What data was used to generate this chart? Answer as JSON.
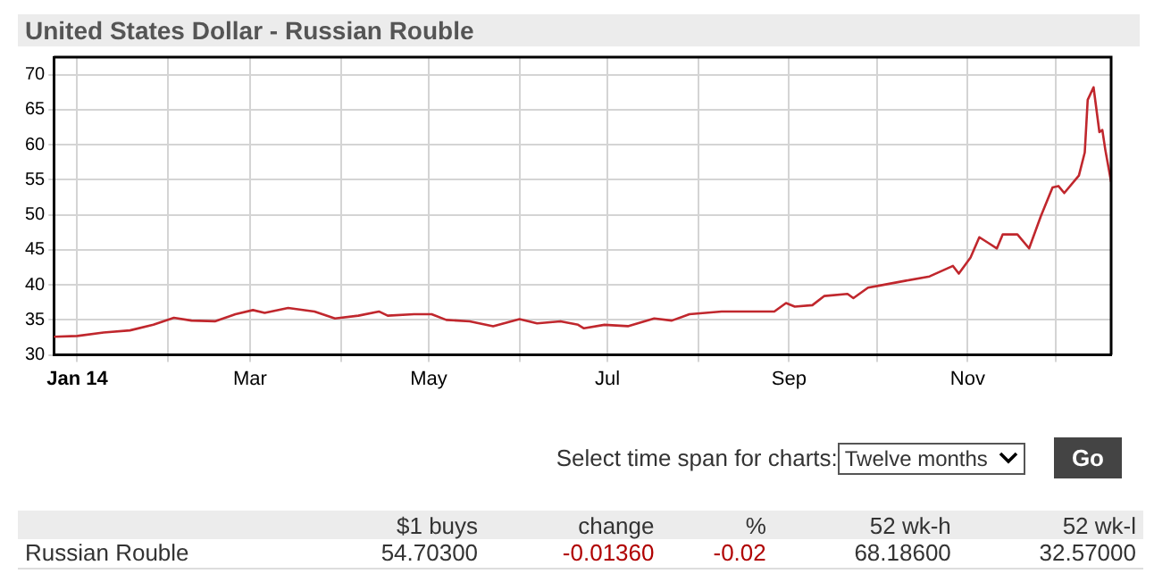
{
  "chart_data": {
    "type": "line",
    "title": "United States Dollar - Russian Rouble",
    "x": [
      "2013-12-24",
      "2014-01-01",
      "2014-01-10",
      "2014-01-19",
      "2014-01-27",
      "2014-02-03",
      "2014-02-09",
      "2014-02-17",
      "2014-02-24",
      "2014-03-02",
      "2014-03-06",
      "2014-03-14",
      "2014-03-23",
      "2014-03-30",
      "2014-04-07",
      "2014-04-14",
      "2014-04-17",
      "2014-04-26",
      "2014-05-02",
      "2014-05-07",
      "2014-05-15",
      "2014-05-23",
      "2014-06-01",
      "2014-06-07",
      "2014-06-15",
      "2014-06-21",
      "2014-06-23",
      "2014-06-30",
      "2014-07-08",
      "2014-07-17",
      "2014-07-23",
      "2014-07-29",
      "2014-08-09",
      "2014-08-19",
      "2014-08-27",
      "2014-08-31",
      "2014-09-03",
      "2014-09-09",
      "2014-09-13",
      "2014-09-21",
      "2014-09-23",
      "2014-09-28",
      "2014-10-02",
      "2014-10-11",
      "2014-10-19",
      "2014-10-27",
      "2014-10-29",
      "2014-11-02",
      "2014-11-05",
      "2014-11-08",
      "2014-11-11",
      "2014-11-13",
      "2014-11-18",
      "2014-11-22",
      "2014-11-26",
      "2014-11-30",
      "2014-12-02",
      "2014-12-04",
      "2014-12-09",
      "2014-12-11",
      "2014-12-12",
      "2014-12-14",
      "2014-12-16",
      "2014-12-17",
      "2014-12-18",
      "2014-12-20"
    ],
    "series": [
      {
        "color": "#c0272d",
        "values": [
          32.6,
          32.7,
          33.2,
          33.5,
          34.3,
          35.3,
          34.9,
          34.8,
          35.8,
          36.4,
          36.0,
          36.7,
          36.2,
          35.2,
          35.6,
          36.2,
          35.6,
          35.8,
          35.8,
          35.0,
          34.8,
          34.1,
          35.1,
          34.5,
          34.8,
          34.3,
          33.8,
          34.3,
          34.1,
          35.2,
          34.9,
          35.8,
          36.2,
          36.2,
          36.2,
          37.4,
          36.9,
          37.1,
          38.4,
          38.7,
          38.1,
          39.6,
          39.9,
          40.6,
          41.2,
          42.7,
          41.6,
          43.9,
          46.8,
          46.0,
          45.2,
          47.2,
          47.2,
          45.2,
          49.8,
          53.9,
          54.1,
          53.1,
          55.6,
          58.9,
          66.4,
          68.2,
          61.8,
          62.1,
          59.3,
          54.7
        ]
      }
    ],
    "xlim": [
      "2013-12-24",
      "2014-12-20"
    ],
    "xticks": [
      {
        "value": "2014-01-01",
        "label": "Jan 14"
      },
      {
        "value": "2014-02-01",
        "label": null
      },
      {
        "value": "2014-03-01",
        "label": "Mar"
      },
      {
        "value": "2014-04-01",
        "label": null
      },
      {
        "value": "2014-05-01",
        "label": "May"
      },
      {
        "value": "2014-06-01",
        "label": null
      },
      {
        "value": "2014-07-01",
        "label": "Jul"
      },
      {
        "value": "2014-08-01",
        "label": null
      },
      {
        "value": "2014-09-01",
        "label": "Sep"
      },
      {
        "value": "2014-10-01",
        "label": null
      },
      {
        "value": "2014-11-01",
        "label": "Nov"
      },
      {
        "value": "2014-12-01",
        "label": null
      }
    ],
    "ylim": [
      30,
      72.5
    ],
    "yticks": [
      30,
      35,
      40,
      45,
      50,
      55,
      60,
      65,
      70
    ],
    "grid": true,
    "legend": false,
    "marker": "none",
    "line_style": "solid",
    "annotations": [
      "Select time span for charts:",
      "Twelve months",
      "Go",
      "$1 buys",
      "change",
      "%",
      "52 wk-h",
      "52 wk-l",
      "Russian Rouble",
      "54.70300",
      "-0.01360",
      "-0.02",
      "68.18600",
      "32.57000"
    ]
  }
}
